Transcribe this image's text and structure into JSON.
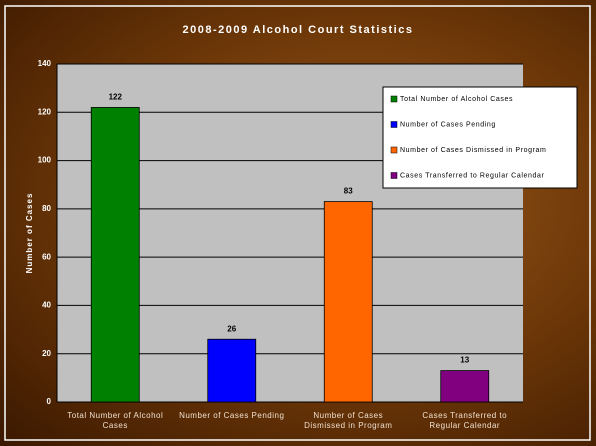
{
  "chart_data": {
    "type": "bar",
    "title": "2008-2009 Alcohol Court Statistics",
    "y_label": "Number of Cases",
    "categories": [
      "Total Number of Alcohol Cases",
      "Number of Cases Pending",
      "Number of Cases Dismissed in Program",
      "Cases Transferred to Regular Calendar"
    ],
    "values": [
      122,
      26,
      83,
      13
    ],
    "colors": [
      "#008000",
      "#0000ff",
      "#ff6600",
      "#800080"
    ],
    "ylim": [
      0,
      140
    ],
    "yticks": [
      0,
      20,
      40,
      60,
      80,
      100,
      120,
      140
    ],
    "grid": true,
    "legend": "upper right"
  }
}
